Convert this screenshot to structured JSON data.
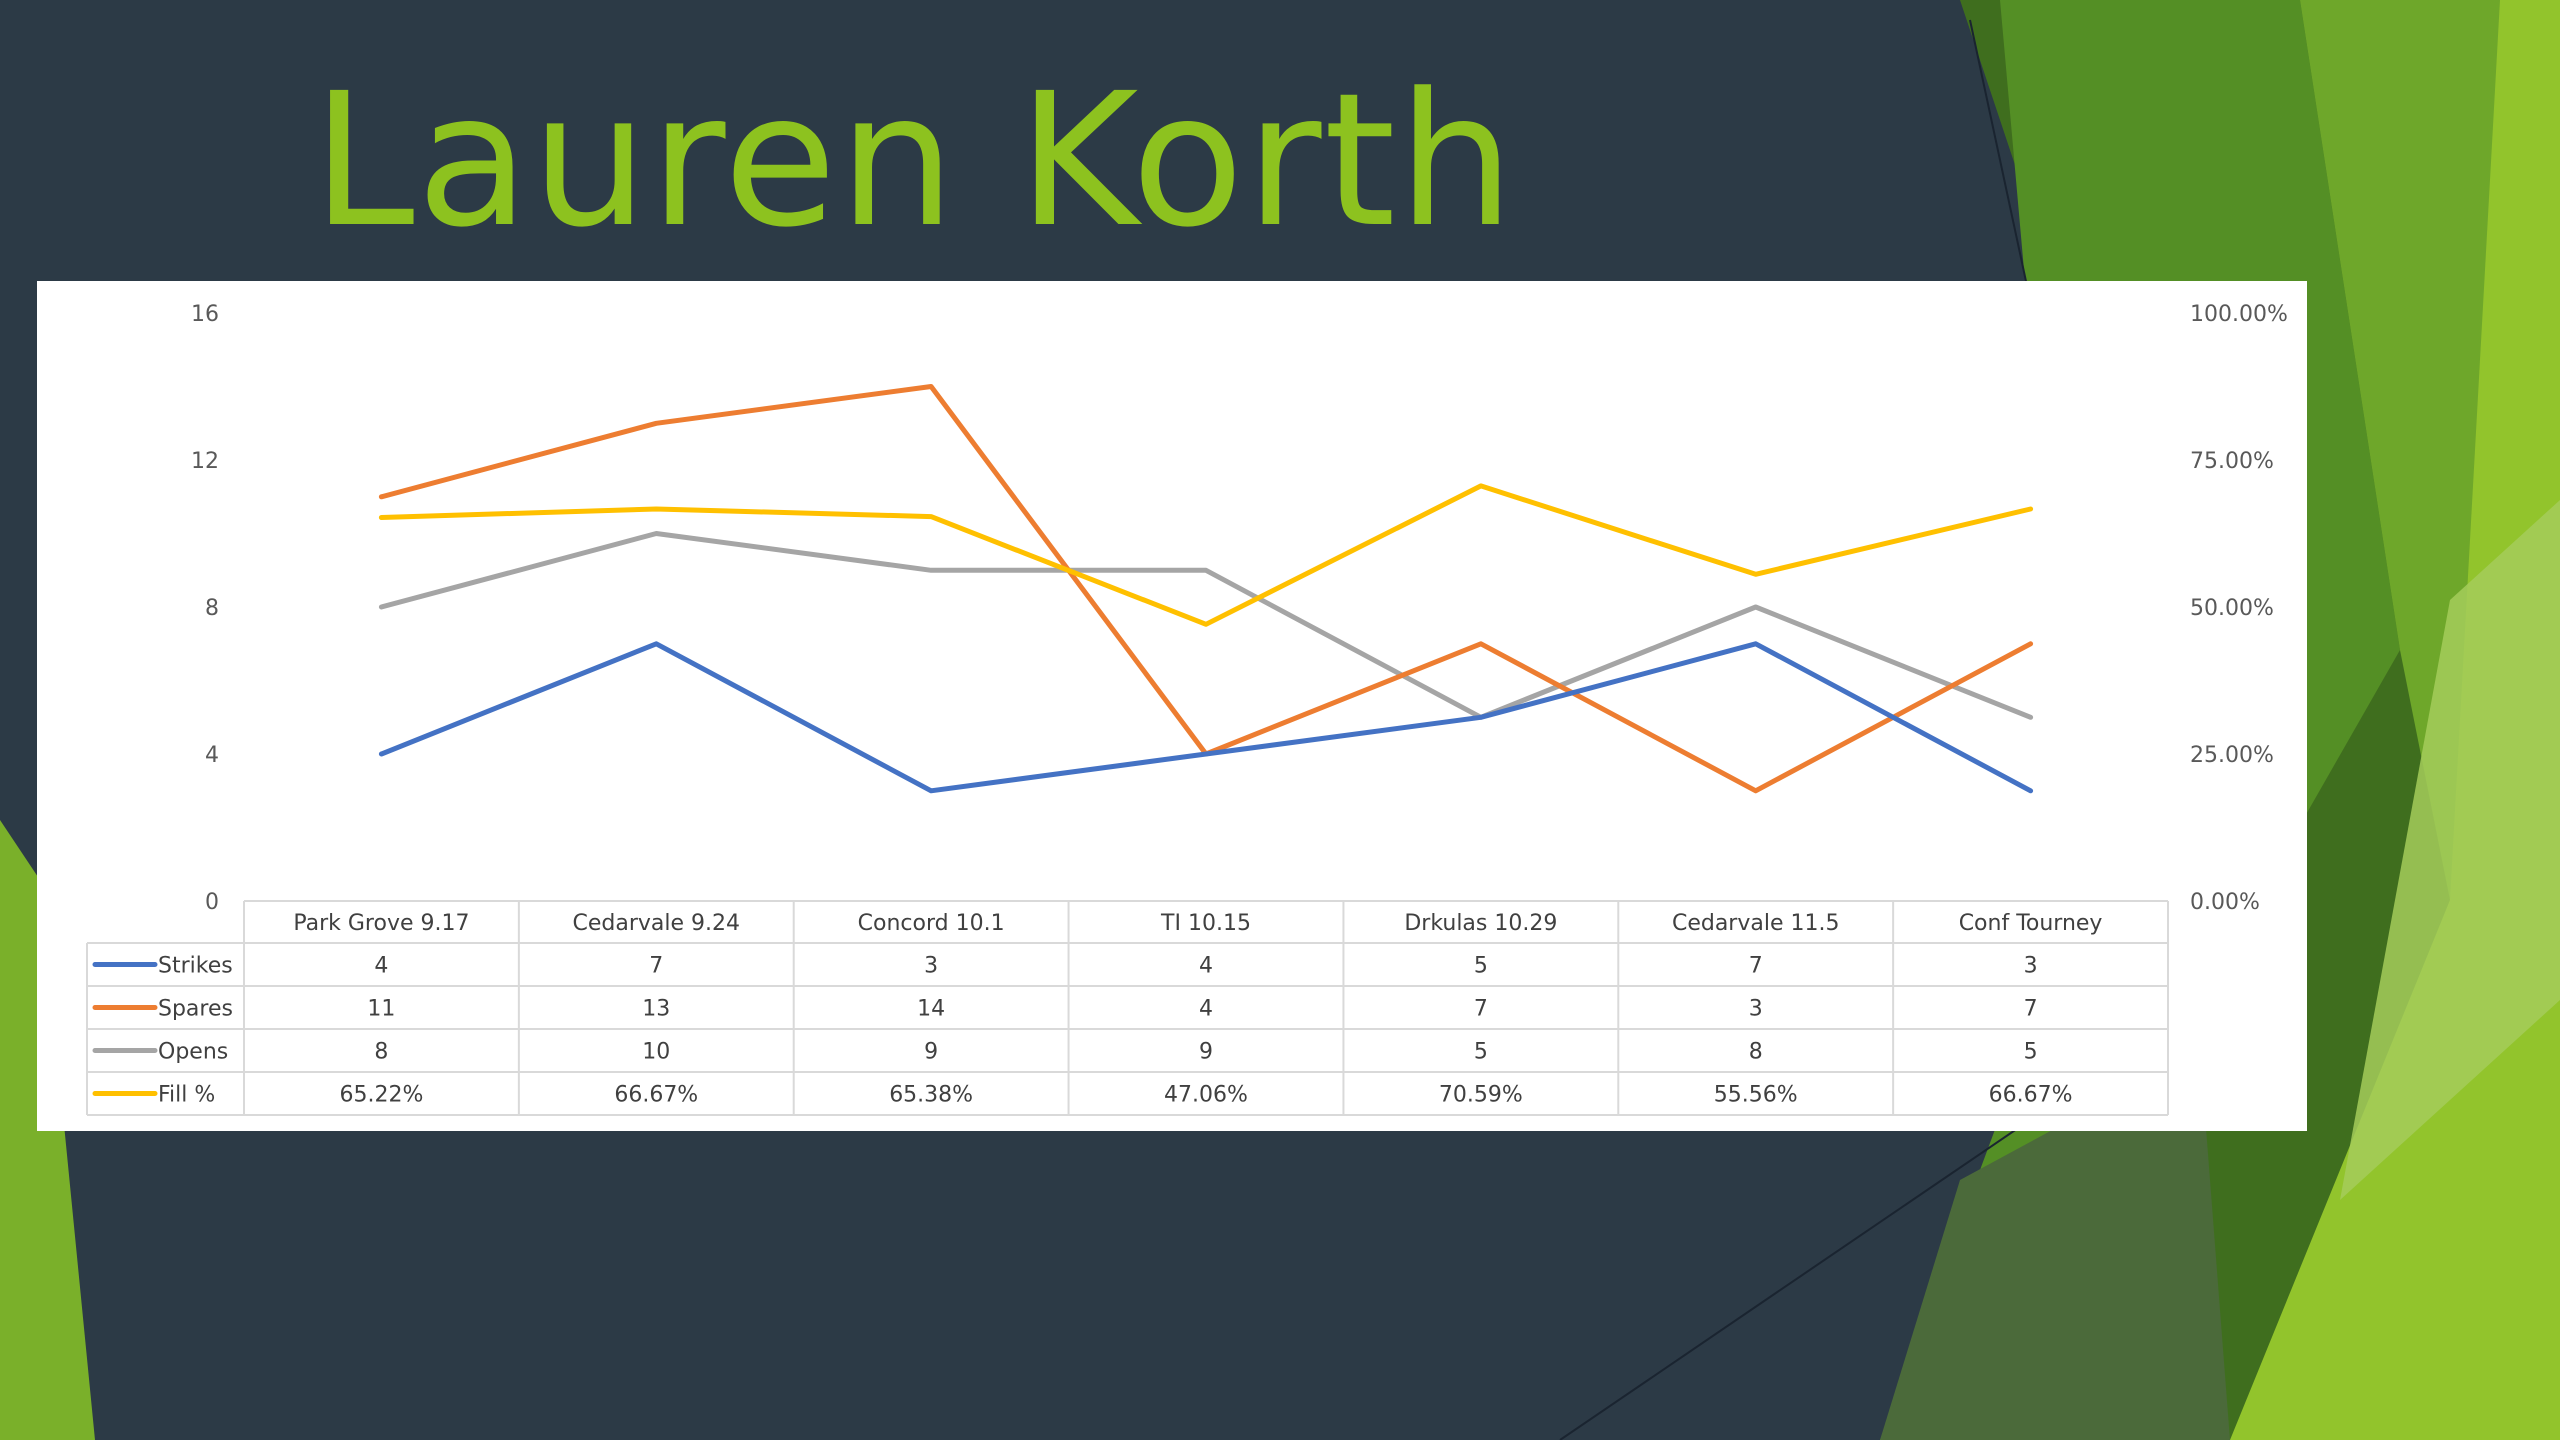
{
  "slide": {
    "title": "Lauren Korth"
  },
  "colors": {
    "background": "#2c3a46",
    "title": "#8dc21f",
    "panel": "#ffffff",
    "strikes": "#4472c4",
    "spares": "#ed7d31",
    "opens": "#a5a5a5",
    "fill_pct": "#ffc000"
  },
  "chart_data": {
    "type": "line",
    "title": "",
    "categories": [
      "Park Grove 9.17",
      "Cedarvale 9.24",
      "Concord 10.1",
      "TI 10.15",
      "Drkulas 10.29",
      "Cedarvale 11.5",
      "Conf Tourney"
    ],
    "y_left": {
      "min": 0,
      "max": 16,
      "ticks": [
        "0",
        "4",
        "8",
        "12",
        "16"
      ]
    },
    "y_right": {
      "min": 0,
      "max": 100,
      "ticks": [
        "0.00%",
        "25.00%",
        "50.00%",
        "75.00%",
        "100.00%"
      ]
    },
    "grid": false,
    "legend": "data-table",
    "series": [
      {
        "name": "Strikes",
        "color": "#4472c4",
        "axis": "left",
        "values": [
          4,
          7,
          3,
          4,
          5,
          7,
          3
        ],
        "labels": [
          "4",
          "7",
          "3",
          "4",
          "5",
          "7",
          "3"
        ]
      },
      {
        "name": "Spares",
        "color": "#ed7d31",
        "axis": "left",
        "values": [
          11,
          13,
          14,
          4,
          7,
          3,
          7
        ],
        "labels": [
          "11",
          "13",
          "14",
          "4",
          "7",
          "3",
          "7"
        ]
      },
      {
        "name": "Opens",
        "color": "#a5a5a5",
        "axis": "left",
        "values": [
          8,
          10,
          9,
          9,
          5,
          8,
          5
        ],
        "labels": [
          "8",
          "10",
          "9",
          "9",
          "5",
          "8",
          "5"
        ]
      },
      {
        "name": "Fill %",
        "color": "#ffc000",
        "axis": "right",
        "values": [
          65.22,
          66.67,
          65.38,
          47.06,
          70.59,
          55.56,
          66.67
        ],
        "labels": [
          "65.22%",
          "66.67%",
          "65.38%",
          "47.06%",
          "70.59%",
          "55.56%",
          "66.67%"
        ]
      }
    ]
  }
}
